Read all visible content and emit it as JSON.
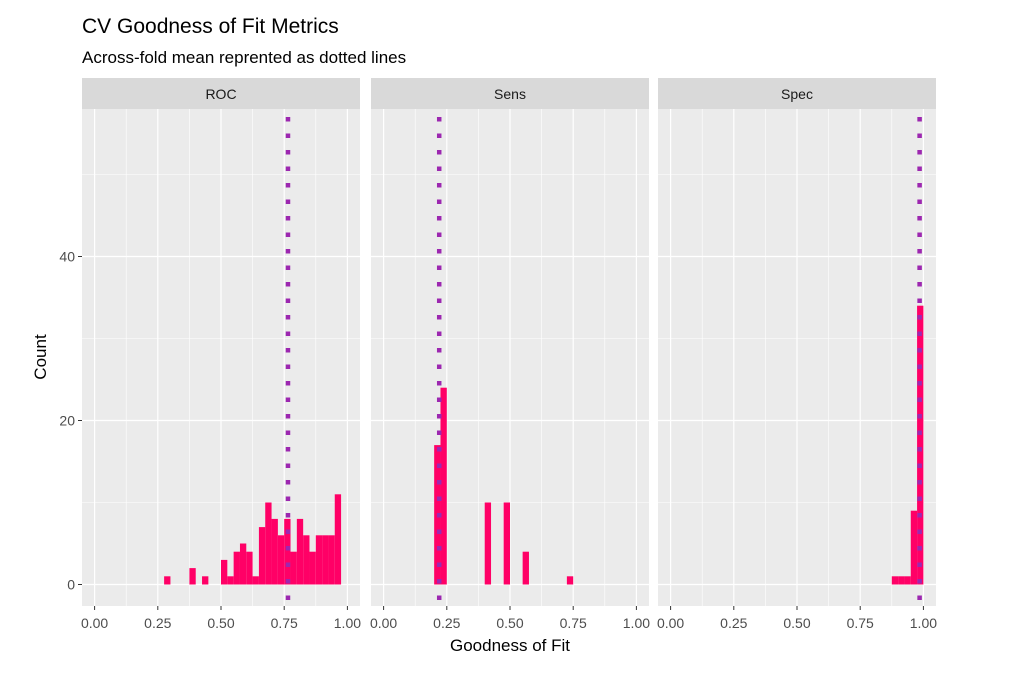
{
  "chart_data": {
    "type": "bar",
    "title": "CV Goodness of Fit Metrics",
    "subtitle": "Across-fold mean reprented as dotted lines",
    "xlabel": "Goodness of Fit",
    "ylabel": "Count",
    "xlim": [
      0,
      1
    ],
    "ylim": [
      0,
      58
    ],
    "x_ticks": [
      "0.00",
      "0.25",
      "0.50",
      "0.75",
      "1.00"
    ],
    "y_ticks": [
      "0",
      "20",
      "40"
    ],
    "bin_width": 0.025,
    "grid": true,
    "colors": {
      "bar": "#ff0066",
      "mean_line": "#9c27b0",
      "panel_bg": "#ebebeb",
      "strip_bg": "#d9d9d9",
      "grid": "#ffffff"
    },
    "panels": [
      {
        "name": "ROC",
        "mean": 0.765,
        "bins": [
          {
            "x": 0.2875,
            "count": 1
          },
          {
            "x": 0.3875,
            "count": 2
          },
          {
            "x": 0.4375,
            "count": 1
          },
          {
            "x": 0.5125,
            "count": 3
          },
          {
            "x": 0.5375,
            "count": 1
          },
          {
            "x": 0.5625,
            "count": 4
          },
          {
            "x": 0.5875,
            "count": 5
          },
          {
            "x": 0.6125,
            "count": 4
          },
          {
            "x": 0.6375,
            "count": 1
          },
          {
            "x": 0.6625,
            "count": 7
          },
          {
            "x": 0.6875,
            "count": 10
          },
          {
            "x": 0.7125,
            "count": 8
          },
          {
            "x": 0.7375,
            "count": 6
          },
          {
            "x": 0.7625,
            "count": 8
          },
          {
            "x": 0.7875,
            "count": 4
          },
          {
            "x": 0.8125,
            "count": 8
          },
          {
            "x": 0.8375,
            "count": 6
          },
          {
            "x": 0.8625,
            "count": 4
          },
          {
            "x": 0.8875,
            "count": 6
          },
          {
            "x": 0.9125,
            "count": 6
          },
          {
            "x": 0.9375,
            "count": 6
          },
          {
            "x": 0.9625,
            "count": 11
          }
        ]
      },
      {
        "name": "Sens",
        "mean": 0.22,
        "bins": [
          {
            "x": 0.2125,
            "count": 17
          },
          {
            "x": 0.2375,
            "count": 24
          },
          {
            "x": 0.4125,
            "count": 10
          },
          {
            "x": 0.4875,
            "count": 10
          },
          {
            "x": 0.5625,
            "count": 4
          },
          {
            "x": 0.7375,
            "count": 1
          }
        ]
      },
      {
        "name": "Spec",
        "mean": 0.985,
        "bins": [
          {
            "x": 0.8875,
            "count": 1
          },
          {
            "x": 0.9125,
            "count": 1
          },
          {
            "x": 0.9375,
            "count": 1
          },
          {
            "x": 0.9625,
            "count": 9
          },
          {
            "x": 0.9875,
            "count": 34
          }
        ]
      }
    ]
  }
}
